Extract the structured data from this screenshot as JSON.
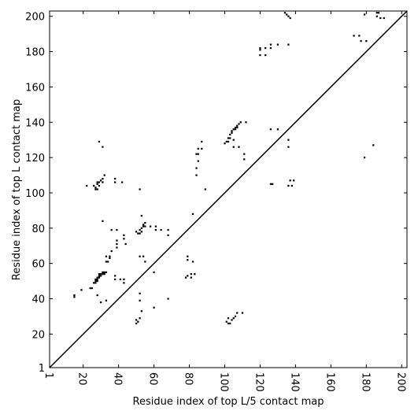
{
  "chart_data": {
    "type": "scatter",
    "x_label": "Residue index of top L/5 contact map",
    "y_label": "Residue index of top L contact map",
    "color": "#000000",
    "xlim": [
      1,
      203
    ],
    "ylim": [
      1,
      203
    ],
    "xticks": [
      1,
      20,
      40,
      60,
      80,
      100,
      120,
      140,
      160,
      180,
      200
    ],
    "yticks": [
      1,
      20,
      40,
      60,
      80,
      100,
      120,
      140,
      160,
      180,
      200
    ],
    "x": [
      15,
      15,
      19,
      25,
      24,
      26,
      27,
      27,
      28,
      28,
      29,
      29,
      30,
      30,
      31,
      32,
      32,
      33,
      27,
      28,
      29,
      31,
      28,
      30,
      33,
      33,
      34,
      35,
      35,
      36,
      33,
      36,
      39,
      39,
      39,
      39,
      38,
      38,
      41,
      43,
      43,
      43,
      43,
      44,
      31,
      22,
      26,
      27,
      27,
      28,
      28,
      29,
      29,
      30,
      31,
      31,
      32,
      28,
      29,
      31,
      38,
      38,
      42,
      52,
      50,
      51,
      52,
      52,
      53,
      54,
      54,
      55,
      55,
      53,
      53,
      54,
      55,
      58,
      61,
      61,
      64,
      68,
      68,
      60,
      52,
      50,
      50,
      51,
      52,
      53,
      52,
      52,
      60,
      68,
      78,
      79,
      79,
      79,
      81,
      81,
      82,
      83,
      82,
      84,
      84,
      84,
      85,
      85,
      85,
      87,
      87,
      89,
      100,
      101,
      102,
      102,
      103,
      103,
      104,
      104,
      105,
      106,
      106,
      107,
      107,
      108,
      109,
      112,
      105,
      105,
      108,
      111,
      111,
      101,
      102,
      103,
      104,
      105,
      106,
      107,
      110,
      102,
      120,
      120,
      120,
      123,
      123,
      126,
      126,
      130,
      126,
      127,
      126,
      130,
      134,
      135,
      136,
      137,
      136,
      136,
      136,
      136,
      137,
      138,
      139,
      173,
      176,
      177,
      180,
      179,
      186,
      186,
      187,
      188,
      190,
      184,
      179
    ],
    "values": [
      41,
      42,
      45,
      46,
      46,
      49,
      50,
      51,
      51,
      52,
      52,
      53,
      53,
      54,
      54,
      54,
      55,
      55,
      49,
      50,
      54,
      55,
      42,
      38,
      39,
      64,
      61,
      63,
      64,
      67,
      61,
      79,
      79,
      69,
      71,
      73,
      51,
      53,
      51,
      51,
      49,
      74,
      76,
      71,
      84,
      104,
      104,
      103,
      102,
      105,
      106,
      106,
      104,
      107,
      108,
      106,
      110,
      102,
      129,
      126,
      106,
      108,
      106,
      102,
      78,
      77,
      77,
      79,
      80,
      81,
      82,
      81,
      83,
      78,
      87,
      64,
      61,
      81,
      79,
      81,
      79,
      79,
      76,
      55,
      64,
      26,
      28,
      27,
      29,
      33,
      39,
      43,
      35,
      40,
      52,
      53,
      62,
      64,
      52,
      54,
      61,
      54,
      88,
      110,
      114,
      122,
      122,
      118,
      125,
      125,
      129,
      102,
      128,
      129,
      129,
      131,
      131,
      133,
      134,
      135,
      136,
      136,
      137,
      137,
      138,
      139,
      140,
      140,
      130,
      126,
      126,
      122,
      119,
      27,
      26,
      26,
      28,
      29,
      30,
      32,
      32,
      29,
      178,
      181,
      182,
      178,
      182,
      182,
      184,
      184,
      105,
      105,
      136,
      136,
      202,
      201,
      200,
      199,
      184,
      126,
      130,
      104,
      107,
      104,
      107,
      189,
      189,
      186,
      186,
      201,
      200,
      202,
      202,
      199,
      199,
      127,
      120
    ]
  }
}
